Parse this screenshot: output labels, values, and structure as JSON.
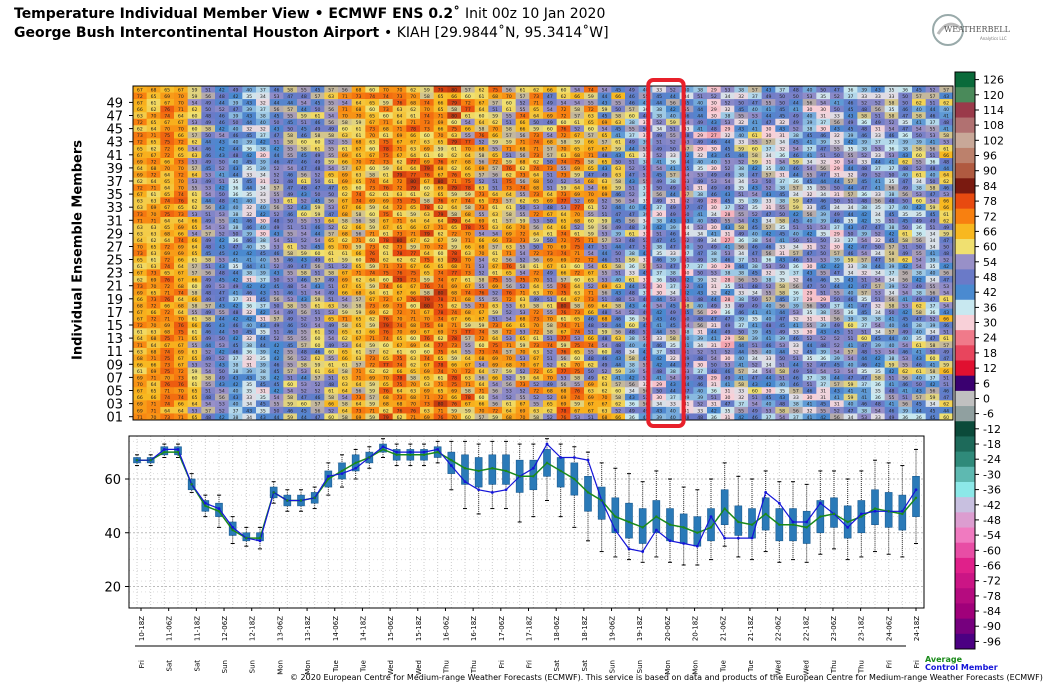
{
  "header": {
    "title_bold": "Temperature Individual Member View • ECMWF ENS 0.2˚",
    "title_init": "Init 00z 10 Jan 2020",
    "location_bold": "George Bush Intercontinental Houston Airport",
    "location_code": "• KIAH [29.9844˚N, 95.3414˚W]"
  },
  "logo": {
    "text": "WEATHERBELL",
    "sub": "Analytics LLC"
  },
  "legend": {
    "average": "Average",
    "control": "Control Member"
  },
  "copyright": "© 2020 European Centre for Medium-range Weather Forecasts (ECMWF). This service is based on data and products of the European Centre for Medium-range Weather Forecasts (ECMWF)",
  "colors": {
    "highlight": "#e8202a",
    "average": "#1a8a1a",
    "control": "#1414d8",
    "box": "#2a7ab8"
  },
  "chart_data": [
    {
      "type": "heatmap",
      "ylabel": "Individual Ensemble Members",
      "members_ticks": [
        "49",
        "47",
        "45",
        "43",
        "41",
        "39",
        "37",
        "35",
        "33",
        "31",
        "29",
        "27",
        "25",
        "23",
        "21",
        "19",
        "17",
        "15",
        "13",
        "11",
        "09",
        "07",
        "05",
        "03",
        "01"
      ],
      "member_count": 51,
      "time_steps": 60,
      "highlighted_step": 38,
      "colorbar": {
        "ticks": [
          "126",
          "120",
          "114",
          "108",
          "102",
          "96",
          "90",
          "84",
          "78",
          "72",
          "66",
          "60",
          "54",
          "48",
          "42",
          "36",
          "30",
          "24",
          "18",
          "12",
          "6",
          "0",
          "-6",
          "-12",
          "-18",
          "-24",
          "-30",
          "-36",
          "-42",
          "-48",
          "-54",
          "-60",
          "-66",
          "-72",
          "-78",
          "-84",
          "-90",
          "-96"
        ],
        "range": [
          -96,
          126
        ]
      }
    },
    {
      "type": "box",
      "ylim": [
        12,
        76
      ],
      "yticks": [
        "20",
        "40",
        "60"
      ],
      "x_labels": [
        "10-18Z",
        "11-00Z",
        "11-06Z",
        "11-12Z",
        "11-18Z",
        "12-00Z",
        "12-06Z",
        "12-12Z",
        "12-18Z",
        "13-00Z",
        "13-06Z",
        "13-12Z",
        "13-18Z",
        "14-00Z",
        "14-06Z",
        "14-12Z",
        "14-18Z",
        "15-00Z",
        "15-06Z",
        "15-12Z",
        "15-18Z",
        "16-00Z",
        "16-06Z",
        "16-12Z",
        "16-18Z",
        "17-00Z",
        "17-06Z",
        "17-12Z",
        "17-18Z",
        "18-00Z",
        "18-06Z",
        "18-12Z",
        "18-18Z",
        "19-00Z",
        "19-06Z",
        "19-12Z",
        "19-18Z",
        "20-00Z",
        "20-06Z",
        "20-12Z",
        "20-18Z",
        "21-00Z",
        "21-06Z",
        "21-12Z",
        "21-18Z",
        "22-00Z",
        "22-06Z",
        "22-12Z",
        "22-18Z",
        "23-00Z",
        "23-06Z",
        "23-12Z",
        "23-18Z",
        "24-00Z",
        "24-06Z",
        "24-12Z",
        "24-18Z",
        "25-00Z"
      ],
      "x_labels_shown": [
        "10-18Z",
        "11-06Z",
        "11-18Z",
        "12-06Z",
        "12-18Z",
        "13-06Z",
        "13-18Z",
        "14-06Z",
        "14-18Z",
        "15-06Z",
        "15-18Z",
        "16-06Z",
        "16-18Z",
        "17-06Z",
        "17-18Z",
        "18-06Z",
        "18-18Z",
        "19-06Z",
        "19-18Z",
        "20-06Z",
        "20-18Z",
        "21-06Z",
        "21-18Z",
        "22-06Z",
        "22-18Z",
        "23-06Z",
        "23-18Z",
        "24-06Z",
        "24-18Z"
      ],
      "day_labels": [
        "Fri",
        "Sat",
        "Sat",
        "Sun",
        "Sun",
        "Mon",
        "Mon",
        "Tue",
        "Tue",
        "Wed",
        "Wed",
        "Thu",
        "Thu",
        "Fri",
        "Fri",
        "Sat",
        "Sat",
        "Sun",
        "Sun",
        "Mon",
        "Mon",
        "Tue",
        "Tue",
        "Wed",
        "Wed",
        "Thu",
        "Thu",
        "Fri",
        "Fri"
      ],
      "average": [
        67,
        67,
        70,
        70,
        58,
        50,
        48,
        41,
        38,
        38,
        55,
        52,
        52,
        53,
        60,
        63,
        66,
        68,
        71,
        69,
        69,
        69,
        70,
        67,
        64,
        63,
        64,
        63,
        61,
        61,
        66,
        63,
        60,
        55,
        52,
        46,
        44,
        42,
        46,
        43,
        42,
        40,
        42,
        49,
        44,
        43,
        47,
        43,
        43,
        42,
        46,
        47,
        44,
        46,
        49,
        48,
        47,
        53
      ],
      "control": [
        67,
        67,
        71,
        71,
        58,
        51,
        49,
        42,
        38,
        37,
        55,
        52,
        52,
        53,
        61,
        62,
        64,
        68,
        72,
        70,
        70,
        70,
        71,
        65,
        59,
        56,
        55,
        56,
        61,
        64,
        73,
        68,
        68,
        67,
        52,
        41,
        34,
        33,
        41,
        37,
        36,
        35,
        46,
        38,
        38,
        38,
        55,
        51,
        44,
        44,
        51,
        47,
        42,
        47,
        48,
        48,
        48,
        56
      ],
      "q1": [
        66,
        66,
        69,
        69,
        56,
        48,
        46,
        39,
        37,
        37,
        53,
        50,
        50,
        51,
        57,
        60,
        63,
        66,
        70,
        67,
        67,
        67,
        68,
        62,
        58,
        57,
        58,
        58,
        55,
        56,
        61,
        57,
        54,
        48,
        45,
        40,
        38,
        36,
        40,
        37,
        36,
        35,
        37,
        43,
        39,
        38,
        41,
        37,
        37,
        36,
        40,
        42,
        38,
        40,
        43,
        42,
        41,
        46
      ],
      "q3": [
        68,
        68,
        72,
        72,
        60,
        52,
        51,
        44,
        40,
        40,
        57,
        54,
        54,
        55,
        63,
        66,
        69,
        70,
        73,
        71,
        71,
        71,
        72,
        70,
        69,
        68,
        69,
        69,
        67,
        67,
        71,
        68,
        66,
        61,
        57,
        53,
        51,
        49,
        52,
        49,
        47,
        46,
        49,
        56,
        50,
        49,
        53,
        49,
        49,
        48,
        52,
        53,
        50,
        52,
        56,
        55,
        54,
        61
      ],
      "lo": [
        65,
        65,
        68,
        68,
        55,
        46,
        42,
        36,
        35,
        34,
        51,
        48,
        48,
        49,
        54,
        57,
        60,
        64,
        68,
        65,
        65,
        65,
        66,
        56,
        49,
        47,
        49,
        49,
        44,
        46,
        52,
        46,
        42,
        37,
        33,
        31,
        30,
        29,
        31,
        29,
        28,
        28,
        30,
        35,
        31,
        30,
        33,
        29,
        30,
        29,
        32,
        34,
        30,
        31,
        33,
        32,
        31,
        36
      ],
      "hi": [
        69,
        69,
        73,
        73,
        62,
        54,
        54,
        46,
        42,
        42,
        59,
        56,
        56,
        57,
        66,
        69,
        71,
        72,
        75,
        73,
        73,
        73,
        74,
        74,
        74,
        73,
        74,
        74,
        73,
        73,
        75,
        73,
        72,
        70,
        66,
        64,
        62,
        59,
        63,
        60,
        57,
        56,
        60,
        66,
        61,
        60,
        63,
        59,
        59,
        58,
        63,
        63,
        60,
        63,
        67,
        66,
        65,
        71
      ]
    }
  ]
}
